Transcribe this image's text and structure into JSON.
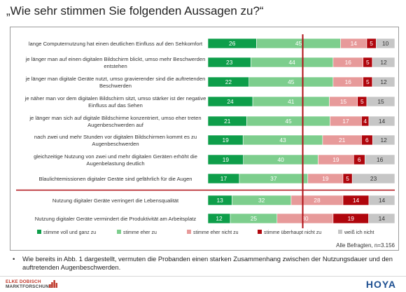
{
  "page": {
    "title": "„Wie sehr stimmen Sie folgenden Aussagen zu?“",
    "base_note": "Alle Befragten, n=3.156",
    "bullet_text": "Wie bereits in Abb. 1 dargestellt, vermuten die Probanden einen starken Zusammenhang zwischen der Nutzungsdauer und den auftretenden Augenbeschwerden.",
    "bullet_symbol": "•",
    "brand_left_line1": "ELKE DOBISCH",
    "brand_left_line2": "MARKTFORSCHUNG",
    "brand_right": "HOYA"
  },
  "colors": {
    "stimme_voll": "#0e9e4a",
    "stimme_eher": "#7dce8d",
    "stimme_eher_nicht": "#e79a9a",
    "stimme_ueberhaupt_nicht": "#b0060d",
    "weiss_nicht": "#c6c6c6",
    "separator": "#b01016"
  },
  "chart_data": {
    "type": "bar",
    "orientation": "horizontal",
    "stacked": true,
    "percent_scale": true,
    "categories": [
      "lange Computernutzung hat einen deutlichen Einfluss auf den Sehkomfort",
      "je länger man auf einen digitalen Bildschirm blickt, umso mehr Beschwerden entstehen",
      "je länger man digitale Geräte nutzt, umso gravierender sind die auftretenden Beschwerden",
      "je näher man vor dem digitalen Bildschirm sitzt, umso stärker ist der negative Einfluss auf das Sehen",
      "je länger man sich auf digitale Bildschirme konzentriert, umso eher treten Augenbeschwerden auf",
      "nach zwei und mehr Stunden vor digitalen Bildschirmen kommt es zu Augenbeschwerden",
      "gleichzeitige Nutzung von zwei und mehr digitalen Geräten erhöht die Augenbelastung deutlich",
      "Blaulichtemissionen digitaler Geräte sind gefährlich für die Augen",
      "Nutzung digitaler Geräte verringert die Lebensqualität",
      "Nutzung digitaler Geräte vermindert die Produktivität am Arbeitsplatz"
    ],
    "series": [
      {
        "name": "stimme voll und ganz zu",
        "values": [
          26,
          23,
          22,
          24,
          21,
          19,
          19,
          17,
          13,
          12
        ]
      },
      {
        "name": "stimme eher zu",
        "values": [
          45,
          44,
          45,
          41,
          45,
          43,
          40,
          37,
          32,
          25
        ]
      },
      {
        "name": "stimme eher nicht zu",
        "values": [
          14,
          16,
          16,
          15,
          17,
          21,
          19,
          19,
          28,
          30
        ]
      },
      {
        "name": "stimme überhaupt nicht zu",
        "values": [
          5,
          5,
          5,
          5,
          4,
          6,
          6,
          5,
          14,
          19
        ]
      },
      {
        "name": "weiß ich nicht",
        "values": [
          10,
          12,
          12,
          15,
          14,
          12,
          16,
          23,
          14,
          14
        ]
      }
    ],
    "xlim": [
      0,
      100
    ],
    "legend_position": "bottom",
    "group_separator_after_index": 7
  }
}
